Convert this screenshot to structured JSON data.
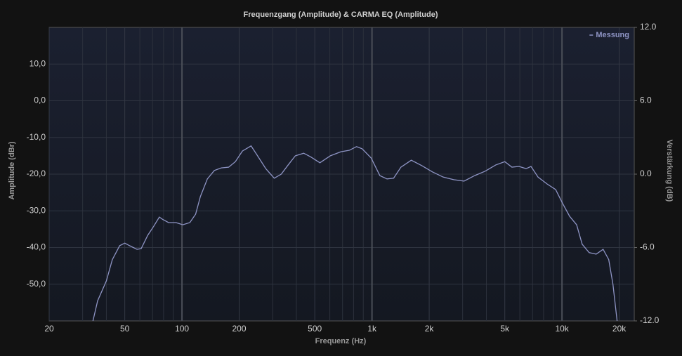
{
  "chart_data": {
    "type": "line",
    "title": "Frequenzgang (Amplitude) & CARMA EQ (Amplitude)",
    "x_label": "Frequenz (Hz)",
    "y_label": "Amplitude (dBr)",
    "y2_label": "Verstärkung (dB)",
    "x_scale": "log",
    "xlim": [
      20,
      24000
    ],
    "xticks": [
      20,
      50,
      100,
      200,
      500,
      {
        "value": 1000,
        "label": "1k"
      },
      {
        "value": 2000,
        "label": "2k"
      },
      {
        "value": 5000,
        "label": "5k"
      },
      {
        "value": 10000,
        "label": "10k"
      },
      {
        "value": 20000,
        "label": "20k"
      }
    ],
    "x_minor_grid": [
      30,
      40,
      60,
      70,
      80,
      90,
      300,
      400,
      600,
      700,
      800,
      900,
      3000,
      4000,
      6000,
      7000,
      8000,
      9000
    ],
    "ylim": [
      -60,
      20
    ],
    "yticks": [
      {
        "value": 10,
        "label": "10,0"
      },
      {
        "value": 0,
        "label": "0,0"
      },
      {
        "value": -10,
        "label": "-10,0"
      },
      {
        "value": -20,
        "label": "-20,0"
      },
      {
        "value": -30,
        "label": "-30,0"
      },
      {
        "value": -40,
        "label": "-40,0"
      },
      {
        "value": -50,
        "label": "-50,0"
      }
    ],
    "y2lim": [
      -12,
      12
    ],
    "y2ticks": [
      {
        "value": 12,
        "label": "12.0"
      },
      {
        "value": 6,
        "label": "6.0"
      },
      {
        "value": 0,
        "label": "0.0"
      },
      {
        "value": -6,
        "label": "-6.0"
      },
      {
        "value": -12,
        "label": "-12.0"
      }
    ],
    "grid": true,
    "legend": "upper right",
    "x": [
      34,
      36,
      40,
      43,
      47,
      50,
      53,
      58,
      61,
      66,
      71,
      76,
      79,
      85,
      93,
      101,
      110,
      118,
      125,
      136,
      148,
      161,
      176,
      191,
      208,
      231,
      247,
      276,
      306,
      333,
      362,
      395,
      437,
      476,
      532,
      604,
      686,
      760,
      829,
      888,
      990,
      1100,
      1200,
      1300,
      1420,
      1610,
      1830,
      2080,
      2370,
      2690,
      3050,
      3470,
      3940,
      4480,
      5000,
      5450,
      5940,
      6470,
      6870,
      7480,
      8360,
      9260,
      10080,
      10970,
      11940,
      12770,
      13900,
      15130,
      16460,
      17620,
      18540,
      19500
    ],
    "series": [
      {
        "name": "Messung",
        "color": "#8e94c4",
        "values": [
          -60,
          -54.5,
          -49.1,
          -43.3,
          -39.5,
          -38.8,
          -39.5,
          -40.5,
          -40.3,
          -36.7,
          -34.2,
          -31.7,
          -32.3,
          -33.2,
          -33.2,
          -33.8,
          -33.2,
          -30.9,
          -26.1,
          -21.3,
          -19.0,
          -18.3,
          -18.1,
          -16.6,
          -13.7,
          -12.3,
          -14.6,
          -18.5,
          -21.1,
          -20.0,
          -17.5,
          -15.0,
          -14.3,
          -15.3,
          -16.9,
          -15.0,
          -13.9,
          -13.5,
          -12.5,
          -13.1,
          -15.6,
          -20.4,
          -21.3,
          -21.1,
          -18.1,
          -16.2,
          -17.7,
          -19.4,
          -20.8,
          -21.5,
          -21.9,
          -20.4,
          -19.2,
          -17.5,
          -16.6,
          -18.1,
          -17.9,
          -18.5,
          -17.9,
          -20.8,
          -22.7,
          -24.2,
          -28.0,
          -31.5,
          -33.8,
          -39.1,
          -41.4,
          -41.8,
          -40.5,
          -43.3,
          -50.0,
          -60
        ]
      }
    ]
  }
}
